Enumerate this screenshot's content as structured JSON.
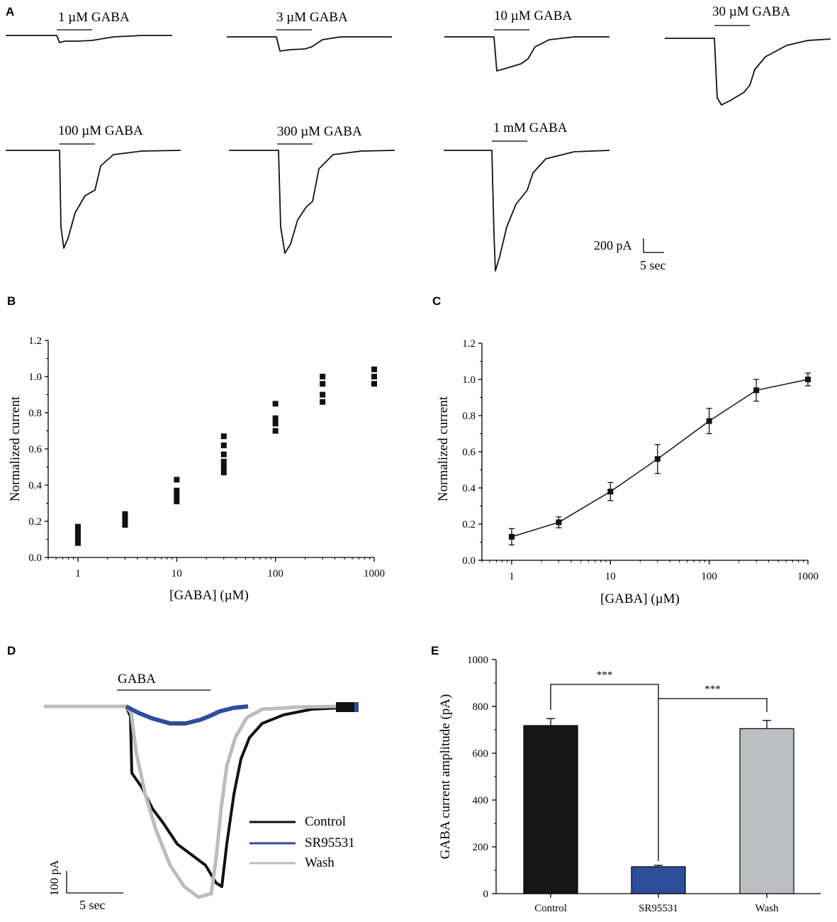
{
  "chart_data": [
    {
      "panel": "A",
      "type": "line",
      "title": "GABA-evoked current traces",
      "traces": [
        {
          "label": "1 µM GABA",
          "peak_pA": 14
        },
        {
          "label": "3 µM GABA",
          "peak_pA": 50
        },
        {
          "label": "10 µM GABA",
          "peak_pA": 110
        },
        {
          "label": "30 µM GABA",
          "peak_pA": 190
        },
        {
          "label": "100 µM GABA",
          "peak_pA": 275
        },
        {
          "label": "300 µM GABA",
          "peak_pA": 290
        },
        {
          "label": "1 mM GABA",
          "peak_pA": 340
        }
      ],
      "scale_bar": {
        "y_label": "200 pA",
        "x_label": "5 sec"
      }
    },
    {
      "panel": "B",
      "type": "scatter",
      "xlabel": "[GABA] (µM)",
      "ylabel": "Normalized current",
      "xscale": "log",
      "xlim": [
        0.5,
        1000
      ],
      "ylim": [
        0.0,
        1.2
      ],
      "xticks": [
        "1",
        "10",
        "100",
        "1000"
      ],
      "yticks": [
        "0.0",
        "0.2",
        "0.4",
        "0.6",
        "0.8",
        "1.0",
        "1.2"
      ],
      "points": [
        {
          "x": 1,
          "values": [
            0.08,
            0.11,
            0.14,
            0.17
          ]
        },
        {
          "x": 3,
          "values": [
            0.18,
            0.2,
            0.22,
            0.24
          ]
        },
        {
          "x": 10,
          "values": [
            0.31,
            0.34,
            0.37,
            0.43
          ]
        },
        {
          "x": 30,
          "values": [
            0.47,
            0.5,
            0.53,
            0.57,
            0.62,
            0.67
          ]
        },
        {
          "x": 100,
          "values": [
            0.7,
            0.74,
            0.77,
            0.85
          ]
        },
        {
          "x": 300,
          "values": [
            0.86,
            0.9,
            0.96,
            1.0
          ]
        },
        {
          "x": 1000,
          "values": [
            0.96,
            1.0,
            1.04
          ]
        }
      ]
    },
    {
      "panel": "C",
      "type": "line",
      "xlabel": "[GABA] (µM)",
      "ylabel": "Normalized current",
      "xscale": "log",
      "xlim": [
        0.5,
        1000
      ],
      "ylim": [
        0.0,
        1.2
      ],
      "xticks": [
        "1",
        "10",
        "100",
        "1000"
      ],
      "yticks": [
        "0.0",
        "0.2",
        "0.4",
        "0.6",
        "0.8",
        "1.0",
        "1.2"
      ],
      "x": [
        1,
        3,
        10,
        30,
        100,
        300,
        1000
      ],
      "values": [
        0.13,
        0.21,
        0.38,
        0.56,
        0.77,
        0.94,
        1.0
      ],
      "errors": [
        0.045,
        0.03,
        0.05,
        0.08,
        0.07,
        0.06,
        0.035
      ]
    },
    {
      "panel": "D",
      "type": "line",
      "application_label": "GABA",
      "legend": [
        {
          "name": "Control",
          "color": "#111111"
        },
        {
          "name": "SR95531",
          "color": "#2e4d9a"
        },
        {
          "name": "Wash",
          "color": "#bcbcbc"
        }
      ],
      "scale_bar": {
        "y_label": "100 pA",
        "x_label": "5 sec"
      }
    },
    {
      "panel": "E",
      "type": "bar",
      "ylabel": "GABA current amplitude (pA)",
      "ylim": [
        0,
        1000
      ],
      "yticks": [
        "0",
        "200",
        "400",
        "600",
        "800",
        "1000"
      ],
      "categories": [
        "Control",
        "SR95531",
        "Wash"
      ],
      "values": [
        718,
        115,
        705
      ],
      "errors": [
        30,
        6,
        35
      ],
      "colors": [
        "#161616",
        "#2e4d9a",
        "#bdbec2"
      ],
      "significance": [
        "***",
        "***"
      ]
    }
  ],
  "labels": {
    "A": "A",
    "B": "B",
    "C": "C",
    "D": "D",
    "E": "E"
  }
}
